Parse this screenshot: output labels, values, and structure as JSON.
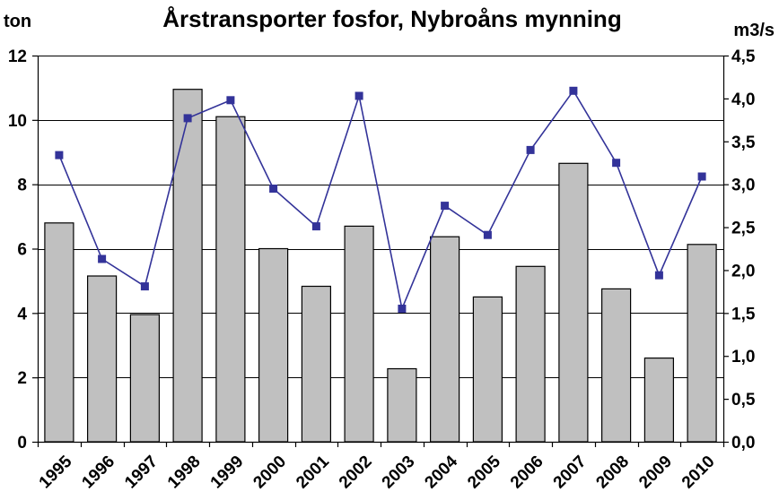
{
  "chart_data": {
    "type": "bar",
    "title": "Årstransporter fosfor, Nybroåns mynning",
    "ylabel_left": "ton",
    "ylabel_right": "m3/s",
    "categories": [
      "1995",
      "1996",
      "1997",
      "1998",
      "1999",
      "2000",
      "2001",
      "2002",
      "2003",
      "2004",
      "2005",
      "2006",
      "2007",
      "2008",
      "2009",
      "2010"
    ],
    "series": [
      {
        "type": "bar",
        "axis": "left",
        "values": [
          6.8,
          5.15,
          3.95,
          10.95,
          10.1,
          6.0,
          4.83,
          6.7,
          2.27,
          6.37,
          4.5,
          5.45,
          8.65,
          4.75,
          2.6,
          6.13
        ]
      },
      {
        "type": "line",
        "axis": "right",
        "values": [
          3.34,
          2.13,
          1.81,
          3.77,
          3.98,
          2.95,
          2.51,
          4.03,
          1.55,
          2.75,
          2.41,
          3.4,
          4.09,
          3.25,
          1.94,
          3.09
        ]
      }
    ],
    "ylim_left": [
      0,
      12
    ],
    "yticks_left": [
      "0",
      "2",
      "4",
      "6",
      "8",
      "10",
      "12"
    ],
    "ylim_right": [
      0,
      4.5
    ],
    "yticks_right": [
      "0,0",
      "0,5",
      "1,0",
      "1,5",
      "2,0",
      "2,5",
      "3,0",
      "3,5",
      "4,0",
      "4,5"
    ],
    "grid": true,
    "colors": {
      "bar_fill": "#c0c0c0",
      "bar_stroke": "#000000",
      "line": "#333399",
      "marker": "#333399",
      "gridline": "#000000"
    }
  }
}
